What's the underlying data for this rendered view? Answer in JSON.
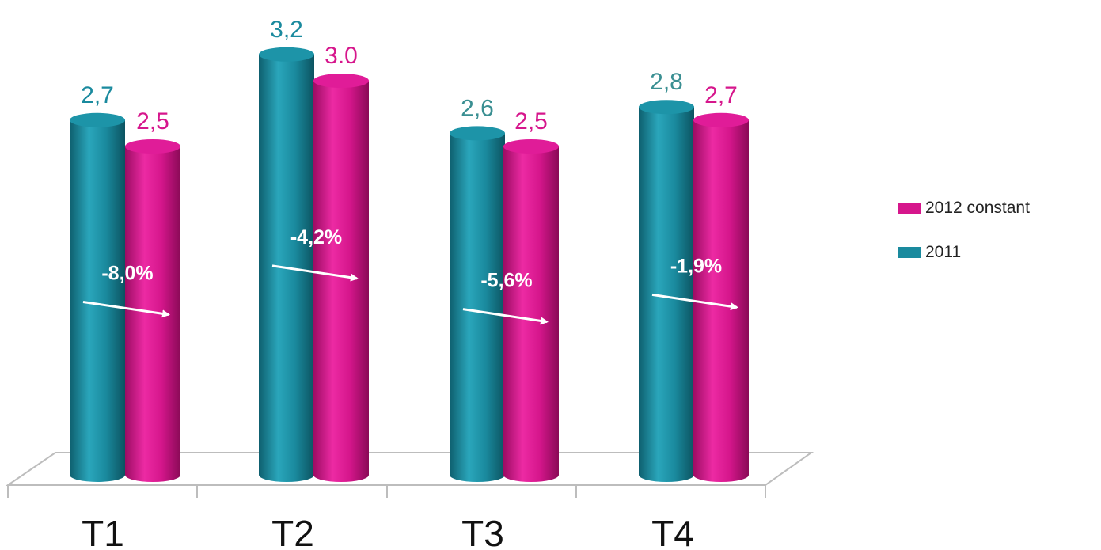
{
  "chart_data": {
    "type": "bar",
    "categories": [
      "T1",
      "T2",
      "T3",
      "T4"
    ],
    "series": [
      {
        "name": "2011",
        "values": [
          2.7,
          3.2,
          2.6,
          2.8
        ],
        "labels": [
          "2,7",
          "3,2",
          "2,6",
          "2,8"
        ],
        "color": "#1a8a9e"
      },
      {
        "name": "2012 constant",
        "values": [
          2.5,
          3.0,
          2.5,
          2.7
        ],
        "labels": [
          "2,5",
          "3.0",
          "2,5",
          "2,7"
        ],
        "color": "#d6168c"
      }
    ],
    "annotations": [
      "-8,0%",
      "-4,2%",
      "-5,6%",
      "-1,9%"
    ],
    "ylim": [
      0,
      3.2
    ],
    "legend_position": "right",
    "grid": false
  }
}
